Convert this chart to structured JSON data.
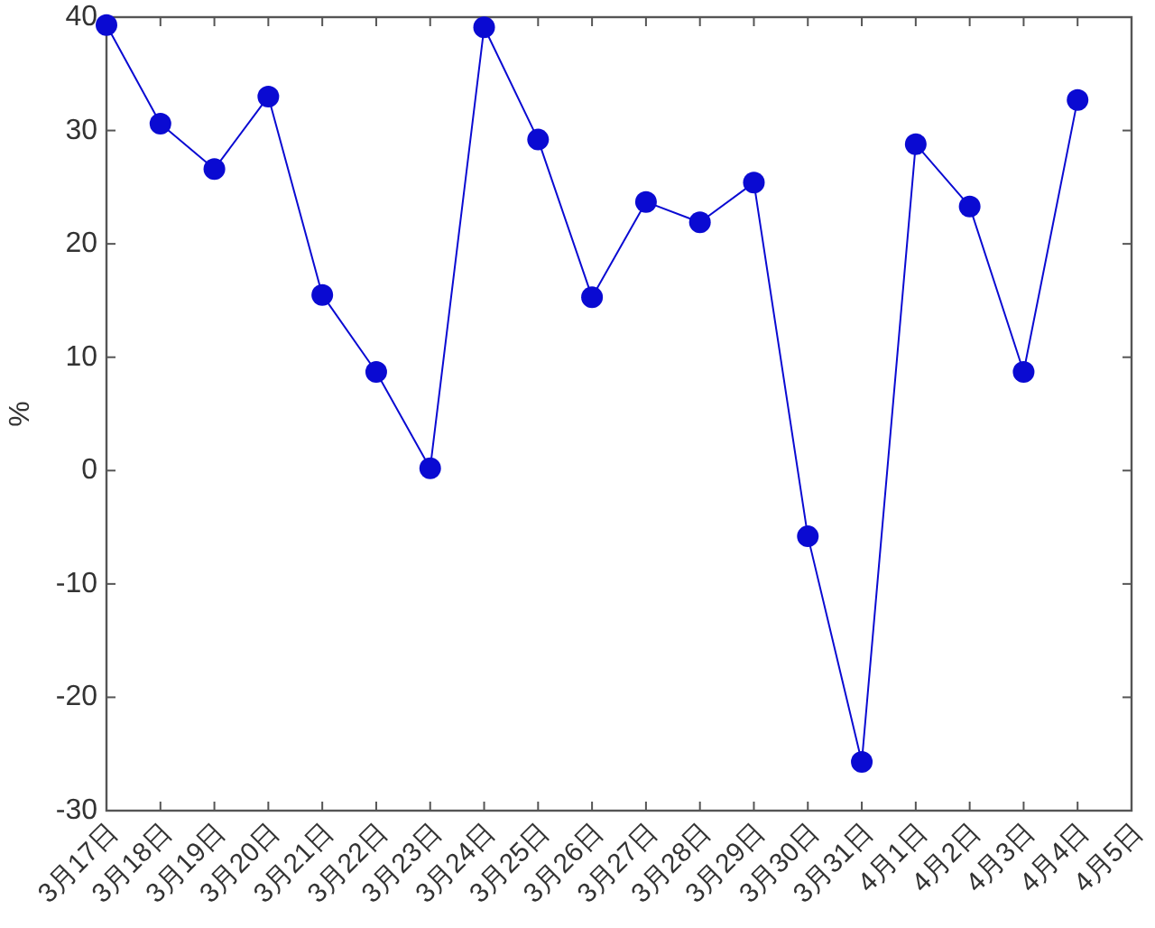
{
  "chart_data": {
    "type": "line",
    "ylabel": "%",
    "categories": [
      "3月17日",
      "3月18日",
      "3月19日",
      "3月20日",
      "3月21日",
      "3月22日",
      "3月23日",
      "3月24日",
      "3月25日",
      "3月26日",
      "3月27日",
      "3月28日",
      "3月29日",
      "3月30日",
      "3月31日",
      "4月1日",
      "4月2日",
      "4月3日",
      "4月4日",
      "4月5日"
    ],
    "series": [
      {
        "color": "#0a0ad2",
        "values": [
          39.3,
          30.6,
          26.6,
          33.0,
          15.5,
          8.7,
          0.2,
          39.1,
          29.2,
          15.3,
          23.7,
          21.9,
          25.4,
          -5.8,
          -25.7,
          28.8,
          23.3,
          8.7,
          32.7,
          null
        ]
      }
    ],
    "ylim": [
      -30,
      40
    ],
    "yticks": [
      -30,
      -20,
      -10,
      0,
      10,
      20,
      30,
      40
    ],
    "marker": "circle",
    "line_style": "solid",
    "grid": false
  }
}
